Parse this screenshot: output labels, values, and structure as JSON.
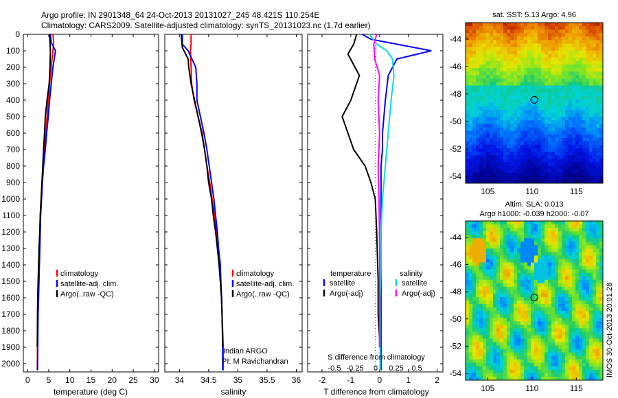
{
  "title_line1": "Argo profile: IN 2901348_64 24-Oct-2013 20131027_245 48.421S 110.254E",
  "title_line2": "Climatology: CARS2009. Satellite-adjusted climatology: synTS_20131023.nc (1.7d earlier)",
  "side_stamp": "IMOS 30-Oct-2013 20:01:28",
  "chart_data": [
    {
      "id": "temperature",
      "type": "line",
      "xlabel": "temperature (deg C)",
      "xlim": [
        -1,
        31
      ],
      "ylim": [
        0,
        2050
      ],
      "y_reversed": true,
      "xticks": [
        0,
        5,
        10,
        15,
        20,
        25,
        30
      ],
      "yticks": [
        0,
        100,
        200,
        300,
        400,
        500,
        600,
        700,
        800,
        900,
        1000,
        1100,
        1200,
        1300,
        1400,
        1500,
        1600,
        1700,
        1800,
        1900,
        2000
      ],
      "legend": [
        "climatology",
        "satellite-adj. clim.",
        "Argo(..raw -QC)"
      ],
      "series": [
        {
          "name": "climatology",
          "color": "#ff0000",
          "x": [
            6.0,
            6.2,
            6.0,
            5.6,
            5.2,
            4.9,
            4.6,
            4.3,
            4.0,
            3.7,
            3.4,
            3.2,
            3.0,
            2.9,
            2.8,
            2.7,
            2.6,
            2.5,
            2.45,
            2.4,
            2.35,
            2.3
          ],
          "y": [
            0,
            50,
            100,
            200,
            300,
            400,
            500,
            600,
            700,
            800,
            900,
            1000,
            1100,
            1200,
            1300,
            1400,
            1500,
            1600,
            1700,
            1800,
            1900,
            2040
          ]
        },
        {
          "name": "satellite-adj. clim.",
          "color": "#0000ff",
          "x": [
            5.4,
            5.6,
            6.6,
            6.0,
            5.6,
            5.2,
            4.9,
            4.5,
            4.2,
            3.8,
            3.5,
            3.3,
            3.1,
            3.0,
            2.9,
            2.8,
            2.7,
            2.6,
            2.5,
            2.45,
            2.4,
            2.35
          ],
          "y": [
            0,
            50,
            100,
            200,
            300,
            400,
            500,
            600,
            700,
            800,
            900,
            1000,
            1100,
            1200,
            1300,
            1400,
            1500,
            1600,
            1700,
            1800,
            1900,
            2040
          ]
        },
        {
          "name": "Argo(..raw -QC)",
          "color": "#000000",
          "x": [
            5.2,
            5.3,
            5.4,
            5.3,
            5.1,
            4.6,
            4.2,
            4.0,
            3.8,
            3.6,
            3.4,
            3.2,
            3.0,
            2.9,
            2.7,
            2.6,
            2.5,
            2.4,
            2.35,
            2.3
          ],
          "y": [
            0,
            50,
            100,
            200,
            300,
            400,
            500,
            600,
            700,
            800,
            900,
            1000,
            1100,
            1200,
            1300,
            1400,
            1500,
            1600,
            1700,
            1900
          ]
        }
      ]
    },
    {
      "id": "salinity",
      "type": "line",
      "xlabel": "salinity",
      "xlim": [
        33.75,
        36.1
      ],
      "ylim": [
        0,
        2050
      ],
      "y_reversed": true,
      "xticks": [
        34,
        34.5,
        35,
        35.5,
        36
      ],
      "legend": [
        "climatology",
        "satellite-adj. clim.",
        "Argo(..raw -QC)"
      ],
      "annotation": [
        "Indian ARGO",
        "PI: M Ravichandran"
      ],
      "series": [
        {
          "name": "climatology",
          "color": "#ff0000",
          "x": [
            34.2,
            34.2,
            34.19,
            34.2,
            34.21,
            34.25,
            34.32,
            34.39,
            34.43,
            34.47,
            34.52,
            34.56,
            34.6,
            34.63,
            34.66,
            34.68,
            34.7,
            34.72,
            34.73,
            34.74,
            34.75,
            34.75
          ],
          "y": [
            0,
            50,
            100,
            200,
            300,
            400,
            500,
            600,
            700,
            800,
            900,
            1000,
            1100,
            1200,
            1300,
            1400,
            1500,
            1600,
            1700,
            1800,
            1900,
            2040
          ]
        },
        {
          "name": "satellite-adj. clim.",
          "color": "#0000ff",
          "x": [
            34.05,
            34.05,
            34.15,
            34.28,
            34.3,
            34.3,
            34.36,
            34.42,
            34.47,
            34.51,
            34.55,
            34.59,
            34.62,
            34.65,
            34.67,
            34.7,
            34.71,
            34.72,
            34.73,
            34.74,
            34.74
          ],
          "y": [
            0,
            60,
            100,
            200,
            300,
            400,
            500,
            600,
            700,
            800,
            900,
            1000,
            1100,
            1200,
            1300,
            1400,
            1500,
            1600,
            1700,
            1850,
            2040
          ]
        },
        {
          "name": "Argo(..raw -QC)",
          "color": "#000000",
          "x": [
            34.03,
            34.05,
            34.15,
            34.16,
            34.2,
            34.26,
            34.32,
            34.38,
            34.43,
            34.47,
            34.5,
            34.55,
            34.58,
            34.62,
            34.65,
            34.68,
            34.7,
            34.72,
            34.73,
            34.74
          ],
          "y": [
            0,
            80,
            150,
            200,
            300,
            400,
            500,
            600,
            700,
            800,
            900,
            1000,
            1100,
            1200,
            1300,
            1400,
            1500,
            1600,
            1700,
            1900
          ]
        }
      ]
    },
    {
      "id": "difference",
      "type": "line",
      "xlabel": "T difference from climatology",
      "xlabel_top": "S difference from climatology",
      "xlim": [
        -2.5,
        2.2
      ],
      "ylim": [
        0,
        2050
      ],
      "y_reversed": true,
      "xticks": [
        -2,
        -1,
        0,
        1,
        2
      ],
      "xticks_top_labels": [
        "-0.5",
        "-0.25",
        "0",
        "0.25",
        "0.5"
      ],
      "xticks_top_values": [
        -0.5,
        -0.25,
        0,
        0.25,
        0.5
      ],
      "legend_left_title": "temperature",
      "legend_right_title": "salinity",
      "legend": [
        "satellite",
        "Argo(-adj)",
        "satellite",
        "Argo(-adj)"
      ],
      "series": [
        {
          "name": "temperature satellite",
          "color": "#0000ff",
          "x": [
            -0.6,
            -0.3,
            0.6,
            1.8,
            0.6,
            0.3,
            0.2,
            0.15,
            0.1,
            0.1,
            0.05,
            0.05,
            0.05,
            0.05,
            0.05,
            0.05,
            0.05,
            0.05,
            0.05,
            0.05
          ],
          "y": [
            0,
            30,
            60,
            100,
            150,
            250,
            400,
            500,
            600,
            700,
            800,
            900,
            1000,
            1200,
            1400,
            1600,
            1800,
            1900,
            2000,
            2040
          ]
        },
        {
          "name": "temperature Argo(-adj)",
          "color": "#000000",
          "x": [
            -0.8,
            -0.9,
            -1.1,
            -0.7,
            -1.0,
            -1.3,
            -0.9,
            -0.5,
            -0.3,
            -0.15,
            -0.1,
            -0.05,
            -0.05,
            0,
            0
          ],
          "y": [
            0,
            60,
            120,
            250,
            400,
            500,
            700,
            800,
            900,
            1000,
            1200,
            1500,
            1700,
            1850,
            1900
          ]
        },
        {
          "name": "salinity satellite",
          "color": "#00dddd",
          "x": [
            -0.35,
            -0.1,
            0.25,
            0.45,
            0.5,
            0.4,
            0.3,
            0.2,
            0.1,
            0.05,
            0.05,
            0.02,
            0.02,
            0.02,
            0.02
          ],
          "y": [
            0,
            60,
            100,
            150,
            250,
            400,
            600,
            800,
            1000,
            1200,
            1400,
            1600,
            1800,
            1900,
            2040
          ]
        },
        {
          "name": "salinity Argo(-adj)",
          "color": "#ff00ff",
          "x": [
            -0.1,
            -0.2,
            -0.17,
            0.0,
            -0.05,
            0.0,
            -0.05,
            -0.02,
            0.0,
            0.0,
            0.0
          ],
          "y": [
            0,
            60,
            150,
            250,
            400,
            600,
            800,
            1000,
            1300,
            1600,
            1900
          ]
        }
      ]
    },
    {
      "id": "sst_map",
      "type": "heatmap",
      "title": "sat. SST: 5.13 Argo: 4.96",
      "xlim": [
        102.5,
        118
      ],
      "ylim": [
        -54.5,
        -42.8
      ],
      "xticks": [
        105,
        110,
        115
      ],
      "yticks": [
        -44,
        -46,
        -48,
        -50,
        -52,
        -54
      ],
      "marker": {
        "lon": 110.254,
        "lat": -48.421
      }
    },
    {
      "id": "sla_map",
      "type": "heatmap",
      "title_line1": "Altim. SLA: 0.013",
      "title_line2": "Argo h1000: -0.039 h2000: -0.07",
      "xlim": [
        102.5,
        118
      ],
      "ylim": [
        -54.5,
        -42.8
      ],
      "xticks": [
        105,
        110,
        115
      ],
      "yticks": [
        -44,
        -46,
        -48,
        -50,
        -52,
        -54
      ],
      "marker": {
        "lon": 110.254,
        "lat": -48.421
      }
    }
  ]
}
